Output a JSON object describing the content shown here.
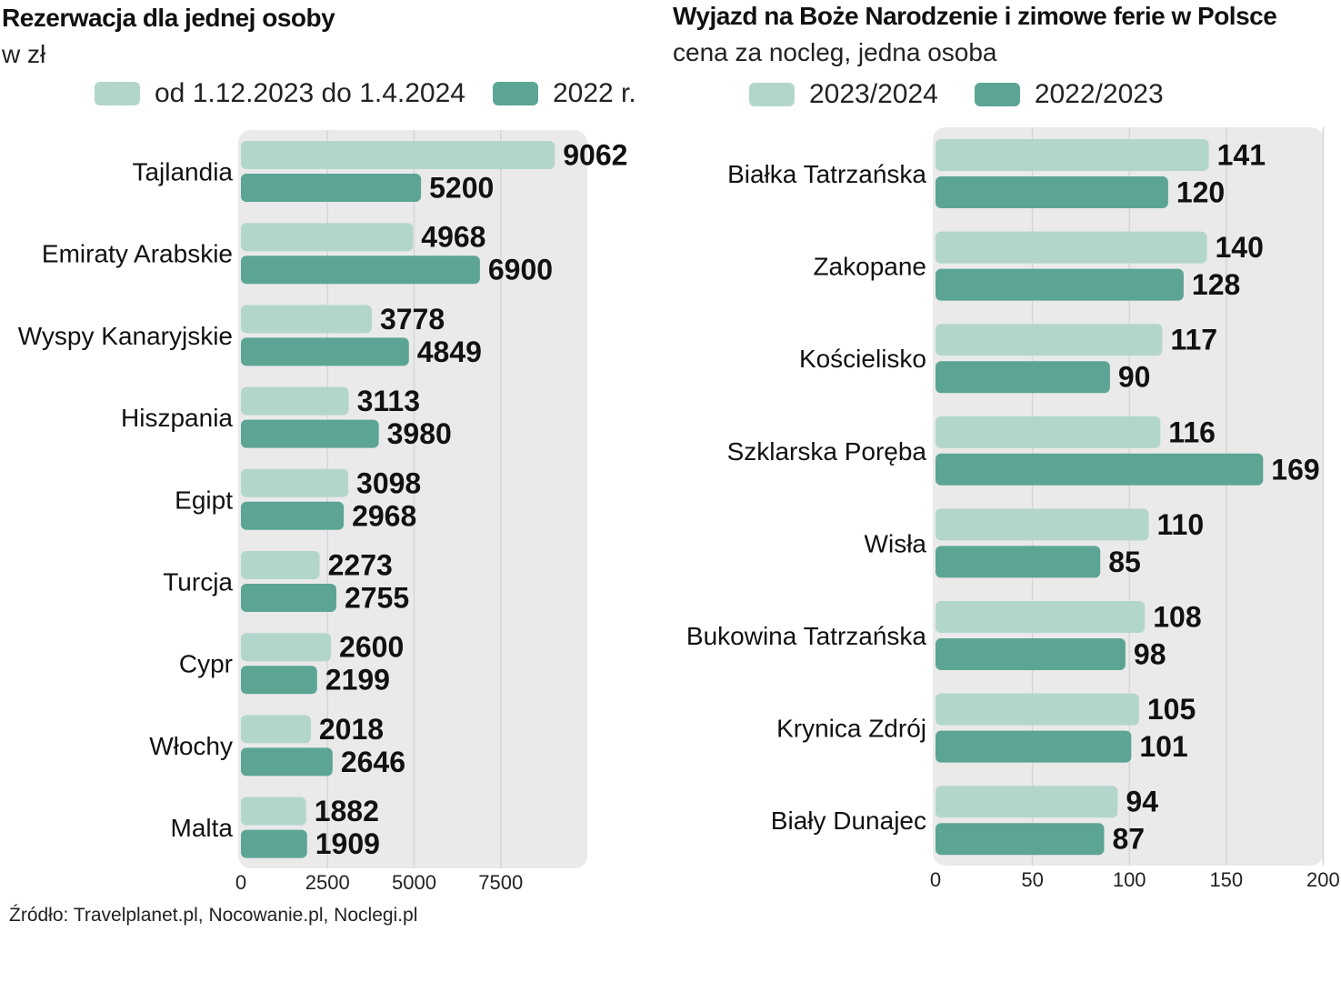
{
  "chart_data": [
    {
      "type": "bar",
      "orientation": "horizontal",
      "title": "Rezerwacja dla jednej osoby",
      "subtitle": "w zł",
      "categories": [
        "Tajlandia",
        "Emiraty Arabskie",
        "Wyspy Kanaryjskie",
        "Hiszpania",
        "Egipt",
        "Turcja",
        "Cypr",
        "Włochy",
        "Malta"
      ],
      "series": [
        {
          "name": "od 1.12.2023 do 1.4.2024",
          "color": "#b3d6cc",
          "values": [
            9062,
            4968,
            3778,
            3113,
            3098,
            2273,
            2600,
            2018,
            1882
          ]
        },
        {
          "name": "2022 r.",
          "color": "#5ca595",
          "values": [
            5200,
            6900,
            4849,
            3980,
            2968,
            2755,
            2199,
            2646,
            1909
          ]
        }
      ],
      "xlim": [
        0,
        10000
      ],
      "xticks": [
        0,
        2500,
        5000,
        7500
      ],
      "xlabel": "",
      "ylabel": "",
      "legend": "top",
      "grid": true
    },
    {
      "type": "bar",
      "orientation": "horizontal",
      "title": "Wyjazd na Boże Narodzenie i zimowe ferie w Polsce",
      "subtitle": "cena za nocleg, jedna osoba",
      "categories": [
        "Białka Tatrzańska",
        "Zakopane",
        "Kościelisko",
        "Szklarska Poręba",
        "Wisła",
        "Bukowina Tatrzańska",
        "Krynica Zdrój",
        "Biały Dunajec"
      ],
      "series": [
        {
          "name": "2023/2024",
          "color": "#b3d6cc",
          "values": [
            141,
            140,
            117,
            116,
            110,
            108,
            105,
            94
          ]
        },
        {
          "name": "2022/2023",
          "color": "#5ca595",
          "values": [
            120,
            128,
            90,
            169,
            85,
            98,
            101,
            87
          ]
        }
      ],
      "xlim": [
        0,
        200
      ],
      "xticks": [
        0,
        50,
        100,
        150,
        200
      ],
      "xlabel": "",
      "ylabel": "",
      "legend": "top",
      "grid": true
    }
  ],
  "source": "Źródło: Travelplanet.pl, Nocowanie.pl, Noclegi.pl"
}
